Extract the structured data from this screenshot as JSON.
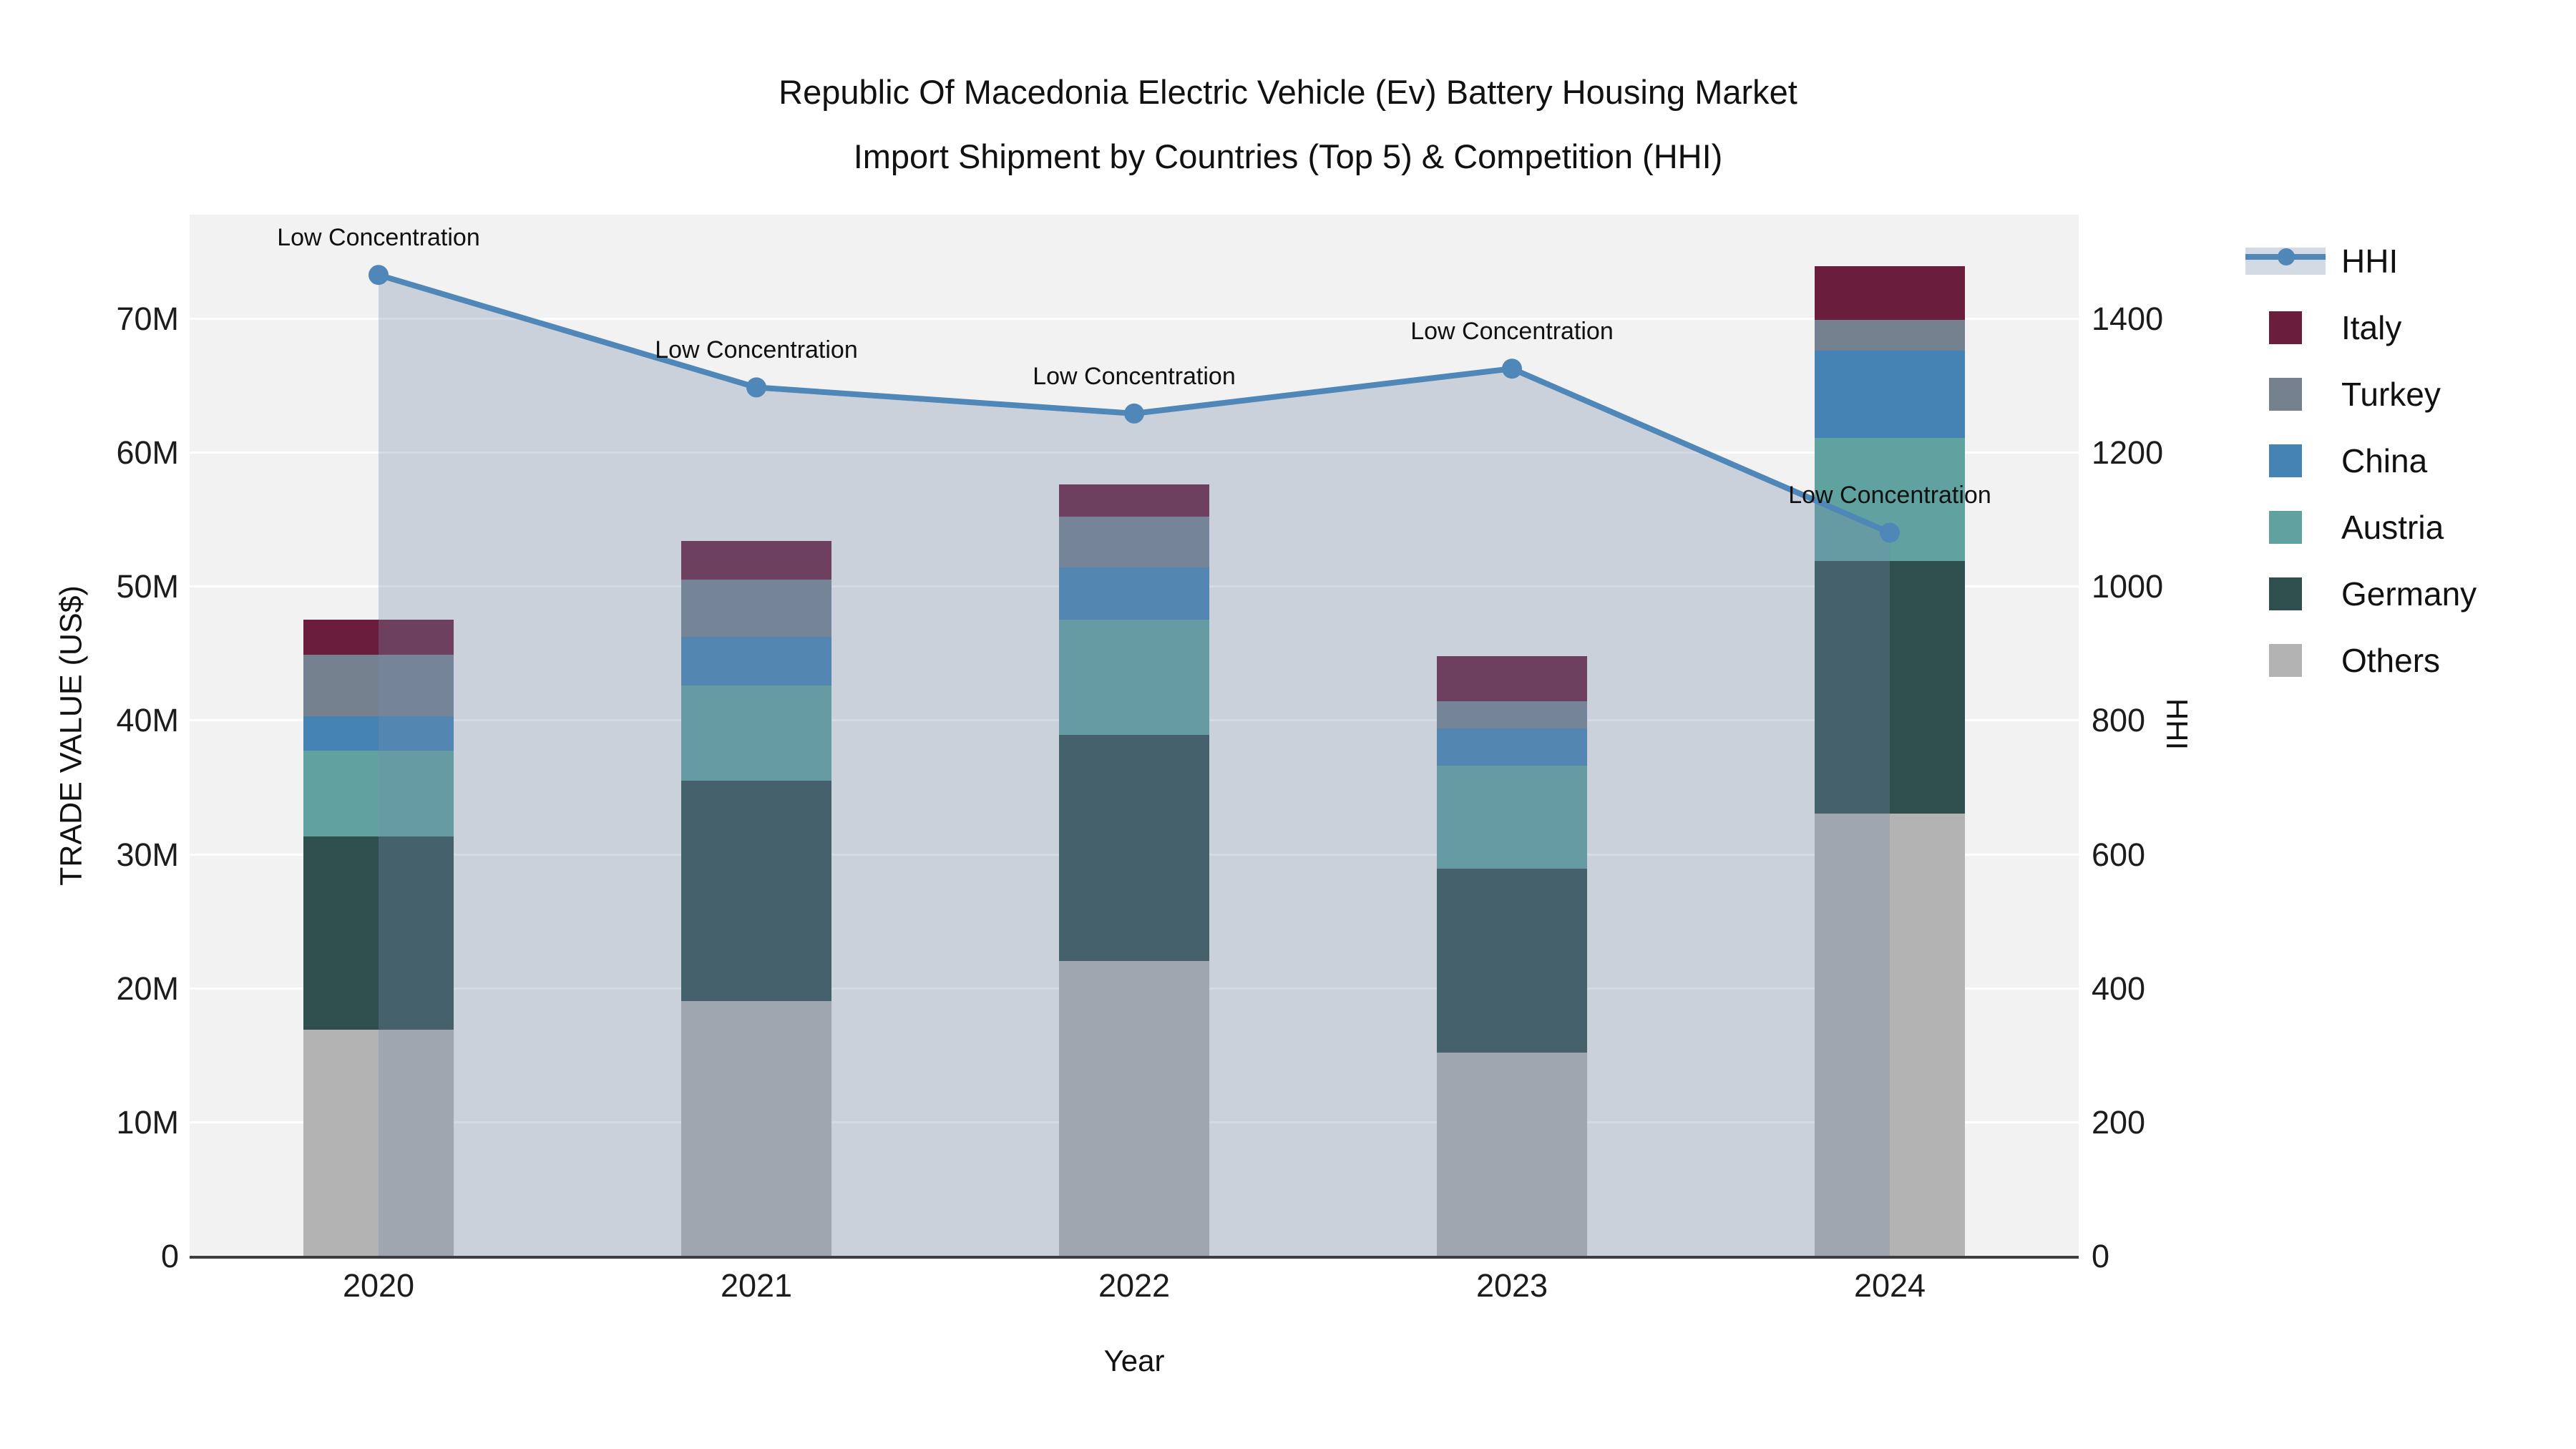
{
  "title": {
    "line1": "Republic Of Macedonia Electric Vehicle (Ev) Battery Housing Market",
    "line2": "Import Shipment by Countries (Top 5) & Competition (HHI)"
  },
  "axes": {
    "left_title": "TRADE VALUE (US$)",
    "right_title": "HHI",
    "x_title": "Year",
    "left_ticks": [
      {
        "label": "0",
        "value": 0
      },
      {
        "label": "10M",
        "value": 10
      },
      {
        "label": "20M",
        "value": 20
      },
      {
        "label": "30M",
        "value": 30
      },
      {
        "label": "40M",
        "value": 40
      },
      {
        "label": "50M",
        "value": 50
      },
      {
        "label": "60M",
        "value": 60
      },
      {
        "label": "70M",
        "value": 70
      }
    ],
    "right_ticks": [
      {
        "label": "0",
        "value": 0
      },
      {
        "label": "200",
        "value": 200
      },
      {
        "label": "400",
        "value": 400
      },
      {
        "label": "600",
        "value": 600
      },
      {
        "label": "800",
        "value": 800
      },
      {
        "label": "1000",
        "value": 1000
      },
      {
        "label": "1200",
        "value": 1200
      },
      {
        "label": "1400",
        "value": 1400
      }
    ]
  },
  "legend": {
    "items": [
      {
        "label": "HHI",
        "type": "line",
        "color": "#4e87b8"
      },
      {
        "label": "Italy",
        "type": "swatch",
        "color": "#6b1d3c"
      },
      {
        "label": "Turkey",
        "type": "swatch",
        "color": "#76818f"
      },
      {
        "label": "China",
        "type": "swatch",
        "color": "#4583b5"
      },
      {
        "label": "Austria",
        "type": "swatch",
        "color": "#5fa2a0"
      },
      {
        "label": "Germany",
        "type": "swatch",
        "color": "#2f4f4e"
      },
      {
        "label": "Others",
        "type": "swatch",
        "color": "#b3b3b3"
      }
    ]
  },
  "chart_data": {
    "type": "bar+line",
    "title": "Republic Of Macedonia Electric Vehicle (Ev) Battery Housing Market Import Shipment by Countries (Top 5) & Competition (HHI)",
    "xlabel": "Year",
    "ylabel_left": "TRADE VALUE (US$)",
    "ylabel_right": "HHI",
    "categories": [
      "2020",
      "2021",
      "2022",
      "2023",
      "2024"
    ],
    "bar_value_unit": "million US$",
    "series": [
      {
        "name": "Others",
        "color": "#b3b3b3",
        "values": [
          16.9,
          19.0,
          22.0,
          15.2,
          33.0
        ]
      },
      {
        "name": "Germany",
        "color": "#2f4f4e",
        "values": [
          14.4,
          16.5,
          16.9,
          13.7,
          18.9
        ]
      },
      {
        "name": "Austria",
        "color": "#5fa2a0",
        "values": [
          6.4,
          7.1,
          8.6,
          7.7,
          9.2
        ]
      },
      {
        "name": "China",
        "color": "#4583b5",
        "values": [
          2.6,
          3.6,
          3.9,
          2.8,
          6.5
        ]
      },
      {
        "name": "Turkey",
        "color": "#76818f",
        "values": [
          4.6,
          4.3,
          3.8,
          2.0,
          2.3
        ]
      },
      {
        "name": "Italy",
        "color": "#6b1d3c",
        "values": [
          2.6,
          2.9,
          2.4,
          3.4,
          4.0
        ]
      }
    ],
    "bar_totals": [
      47.5,
      53.4,
      57.6,
      44.8,
      73.9
    ],
    "line_series": {
      "name": "HHI",
      "values": [
        1465,
        1297,
        1258,
        1325,
        1080
      ],
      "color": "#4e87b8",
      "area_fill": "rgba(119,139,171,0.32)"
    },
    "annotations": [
      "Low Concentration",
      "Low Concentration",
      "Low Concentration",
      "Low Concentration",
      "Low Concentration"
    ],
    "ylim_left": [
      0,
      77.75
    ],
    "ylim_right": [
      0,
      1555
    ],
    "grid": true,
    "legend_position": "right"
  }
}
